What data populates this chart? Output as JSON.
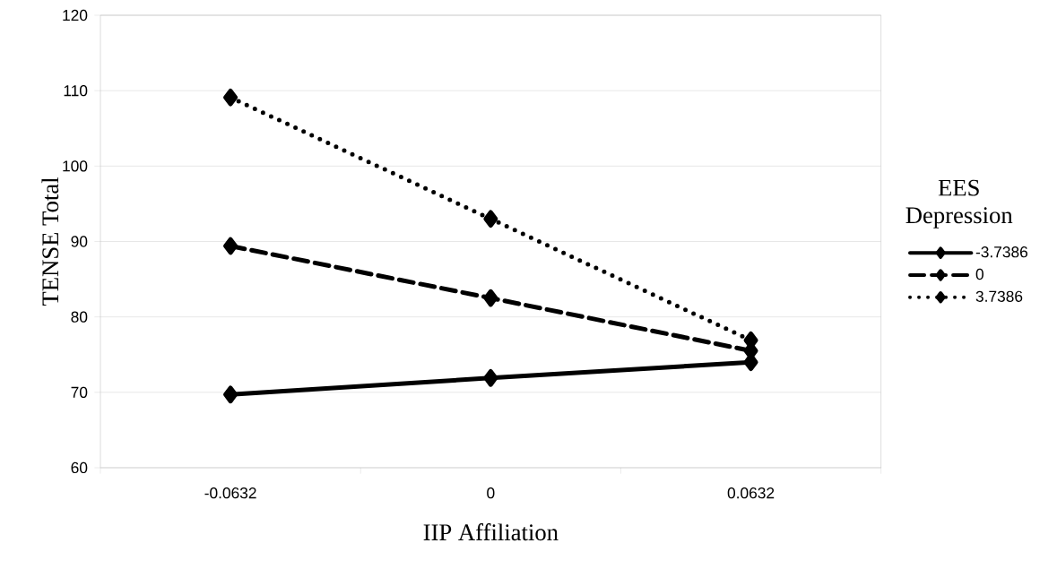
{
  "chart_data": {
    "type": "line",
    "xlabel": "IIP Affiliation",
    "ylabel": "TENSE Total",
    "legend_title": "EES Depression",
    "categories": [
      "-0.0632",
      "0",
      "0.0632"
    ],
    "series": [
      {
        "name": "-3.7386",
        "color": "#000000",
        "line_style": "solid",
        "values": [
          69.7,
          71.9,
          74.0
        ]
      },
      {
        "name": "0",
        "color": "#000000",
        "line_style": "dashed",
        "values": [
          89.4,
          82.5,
          75.5
        ]
      },
      {
        "name": "3.7386",
        "color": "#000000",
        "line_style": "dotted",
        "values": [
          109.1,
          93.0,
          76.9
        ]
      }
    ],
    "ylim": [
      60,
      120
    ],
    "yticks": [
      60,
      70,
      80,
      90,
      100,
      110,
      120
    ],
    "grid": "y",
    "legend": "right",
    "marker": "diamond"
  }
}
